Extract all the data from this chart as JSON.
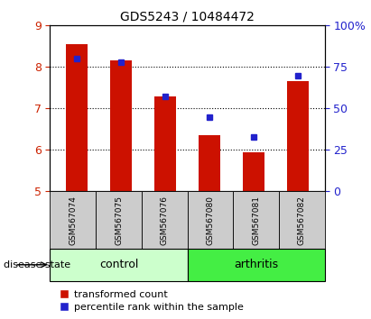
{
  "title": "GDS5243 / 10484472",
  "samples": [
    "GSM567074",
    "GSM567075",
    "GSM567076",
    "GSM567080",
    "GSM567081",
    "GSM567082"
  ],
  "transformed_count": [
    8.55,
    8.15,
    7.3,
    6.35,
    5.95,
    7.65
  ],
  "percentile_rank": [
    80,
    78,
    57,
    45,
    33,
    70
  ],
  "ylim_left": [
    5,
    9
  ],
  "ylim_right": [
    0,
    100
  ],
  "yticks_left": [
    5,
    6,
    7,
    8,
    9
  ],
  "yticks_right": [
    0,
    25,
    50,
    75,
    100
  ],
  "ytick_right_labels": [
    "0",
    "25",
    "50",
    "75",
    "100%"
  ],
  "bar_color": "#cc1100",
  "point_color": "#2222cc",
  "control_color": "#ccffcc",
  "arthritis_color": "#44ee44",
  "label_bg_color": "#cccccc",
  "bar_width": 0.5,
  "legend_red_label": "transformed count",
  "legend_blue_label": "percentile rank within the sample",
  "disease_state_label": "disease state",
  "control_label": "control",
  "arthritis_label": "arthritis",
  "title_fontsize": 10,
  "tick_fontsize": 9,
  "sample_fontsize": 6.5,
  "group_fontsize": 9,
  "legend_fontsize": 8
}
